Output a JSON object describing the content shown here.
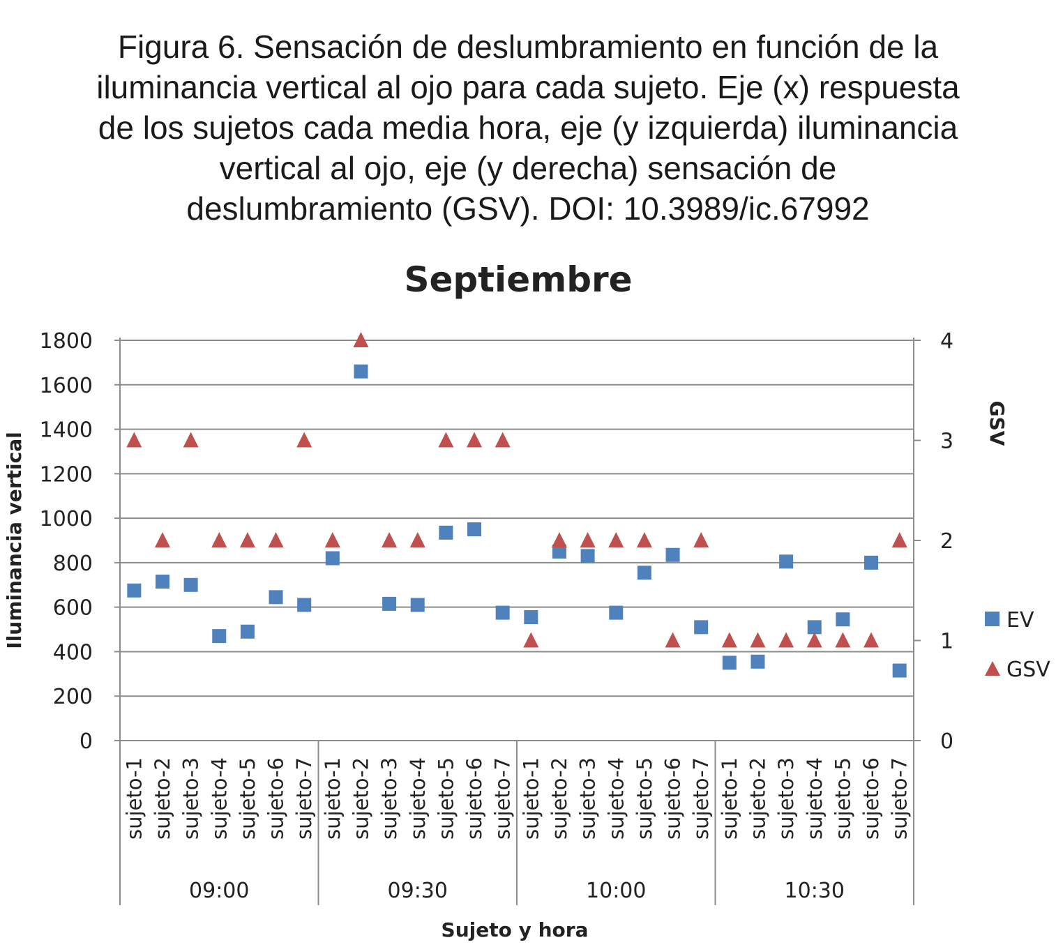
{
  "caption": {
    "lines": [
      "Figura 6. Sensación de deslumbramiento en función de la",
      "iluminancia vertical al ojo para cada sujeto. Eje (x) respuesta",
      "de los sujetos cada media hora, eje (y izquierda) iluminancia",
      "vertical al ojo, eje (y derecha) sensación de",
      "deslumbramiento (GSV). DOI: 10.3989/ic.67992"
    ]
  },
  "chart_data": {
    "type": "scatter",
    "title": "Septiembre",
    "xlabel": "Sujeto y hora",
    "ylabel": "Iluminancia vertical",
    "y2label": "GSV",
    "ylim": [
      0,
      1800
    ],
    "yticks": [
      0,
      200,
      400,
      600,
      800,
      1000,
      1200,
      1400,
      1600,
      1800
    ],
    "y2lim": [
      0,
      4
    ],
    "y2ticks": [
      0,
      1,
      2,
      3,
      4
    ],
    "grid": true,
    "legend_position": "right",
    "groups": [
      "09:00",
      "09:30",
      "10:00",
      "10:30"
    ],
    "subjects": [
      "sujeto-1",
      "sujeto-2",
      "sujeto-3",
      "sujeto-4",
      "sujeto-5",
      "sujeto-6",
      "sujeto-7"
    ],
    "series": [
      {
        "name": "EV",
        "axis": "left",
        "marker": "square",
        "color": "#4F81BD",
        "values": [
          675,
          715,
          700,
          470,
          490,
          645,
          610,
          820,
          1660,
          615,
          610,
          935,
          950,
          575,
          555,
          850,
          830,
          575,
          755,
          835,
          510,
          350,
          355,
          805,
          510,
          545,
          800,
          315
        ]
      },
      {
        "name": "GSV",
        "axis": "right",
        "marker": "triangle",
        "color": "#C0504D",
        "values": [
          3,
          2,
          3,
          2,
          2,
          2,
          3,
          2,
          4,
          2,
          2,
          3,
          3,
          3,
          1,
          2,
          2,
          2,
          2,
          1,
          2,
          1,
          1,
          1,
          1,
          1,
          1,
          2
        ]
      }
    ]
  }
}
